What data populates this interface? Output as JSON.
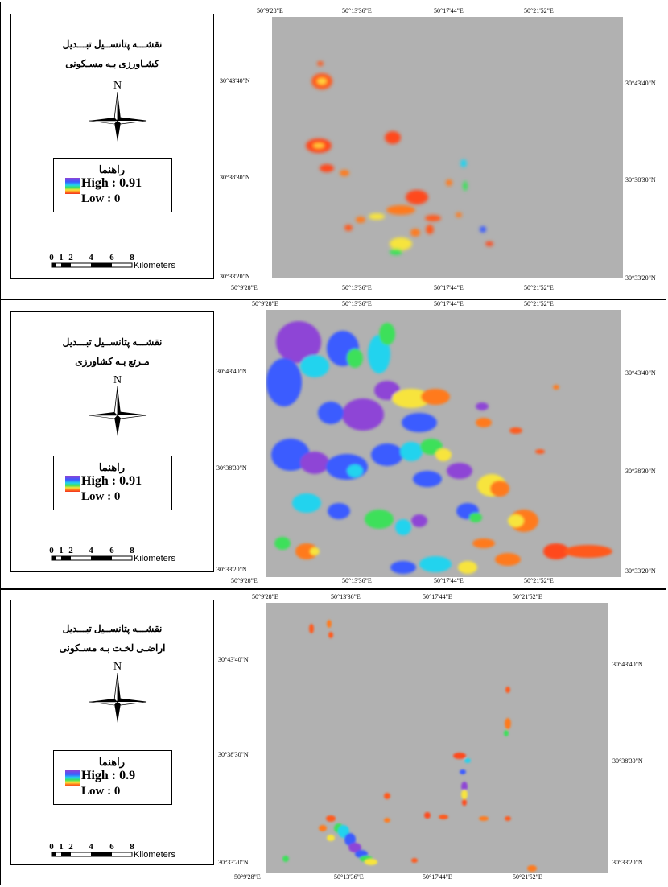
{
  "colors": {
    "map_background": "#b1b1b1",
    "ramp": [
      "#8e44d6",
      "#3b5bff",
      "#22d3ee",
      "#3ee05a",
      "#f7e43c",
      "#ff7a1a",
      "#f23020"
    ]
  },
  "north_label": "N",
  "scale": {
    "ticks": [
      "0",
      "1",
      "2",
      "4",
      "6",
      "8"
    ],
    "unit": "Kilometers"
  },
  "longitudes": [
    "50°9'28\"E",
    "50°13'36\"E",
    "50°17'44\"E",
    "50°21'52\"E"
  ],
  "latitudes": [
    "30°43'40\"N",
    "30°38'30\"N",
    "30°33'20\"N"
  ],
  "panels": [
    {
      "title_line1": "نقشـــه پتانســیل تبـــدیل",
      "title_line2": "کشـاورزی بـه مسـکونی",
      "legend_title": "راهنما",
      "high": "High : 0.91",
      "low": "Low : 0"
    },
    {
      "title_line1": "نقشـــه پتانســیل تبـــدیل",
      "title_line2": "مـرتع بـه کشاورزی",
      "legend_title": "راهنما",
      "high": "High : 0.91",
      "low": "Low : 0"
    },
    {
      "title_line1": "نقشـــه پتانســیل تبـــدیل",
      "title_line2": "اراضـی لخـت بـه مسـکونی",
      "legend_title": "راهنما",
      "high": "High : 0.9",
      "low": "Low : 0"
    }
  ]
}
